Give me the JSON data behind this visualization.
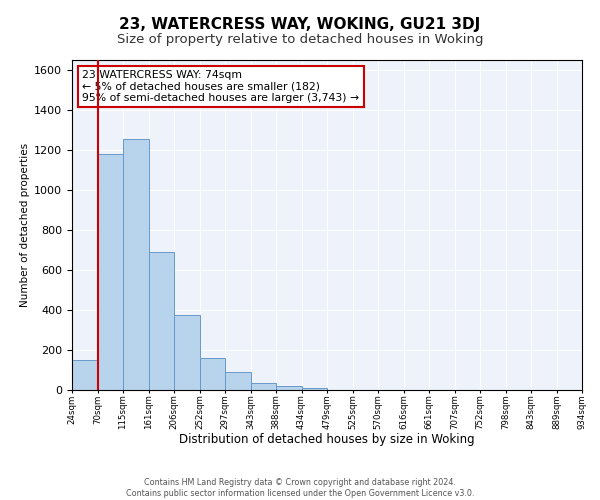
{
  "title": "23, WATERCRESS WAY, WOKING, GU21 3DJ",
  "subtitle": "Size of property relative to detached houses in Woking",
  "xlabel": "Distribution of detached houses by size in Woking",
  "ylabel": "Number of detached properties",
  "bar_values": [
    150,
    1180,
    1255,
    690,
    375,
    160,
    90,
    35,
    20,
    10,
    0,
    0,
    0,
    0,
    0,
    0,
    0,
    0,
    0,
    0
  ],
  "bar_labels": [
    "24sqm",
    "70sqm",
    "115sqm",
    "161sqm",
    "206sqm",
    "252sqm",
    "297sqm",
    "343sqm",
    "388sqm",
    "434sqm",
    "479sqm",
    "525sqm",
    "570sqm",
    "616sqm",
    "661sqm",
    "707sqm",
    "752sqm",
    "798sqm",
    "843sqm",
    "889sqm",
    "934sqm"
  ],
  "bar_color": "#b8d4ed",
  "bar_edge_color": "#6699cc",
  "vline_color": "#cc0000",
  "ylim": [
    0,
    1650
  ],
  "yticks": [
    0,
    200,
    400,
    600,
    800,
    1000,
    1200,
    1400,
    1600
  ],
  "annotation_title": "23 WATERCRESS WAY: 74sqm",
  "annotation_line1": "← 5% of detached houses are smaller (182)",
  "annotation_line2": "95% of semi-detached houses are larger (3,743) →",
  "footer_line1": "Contains HM Land Registry data © Crown copyright and database right 2024.",
  "footer_line2": "Contains public sector information licensed under the Open Government Licence v3.0.",
  "background_color": "#eef2fb",
  "grid_color": "#ffffff",
  "title_fontsize": 11,
  "subtitle_fontsize": 9.5
}
